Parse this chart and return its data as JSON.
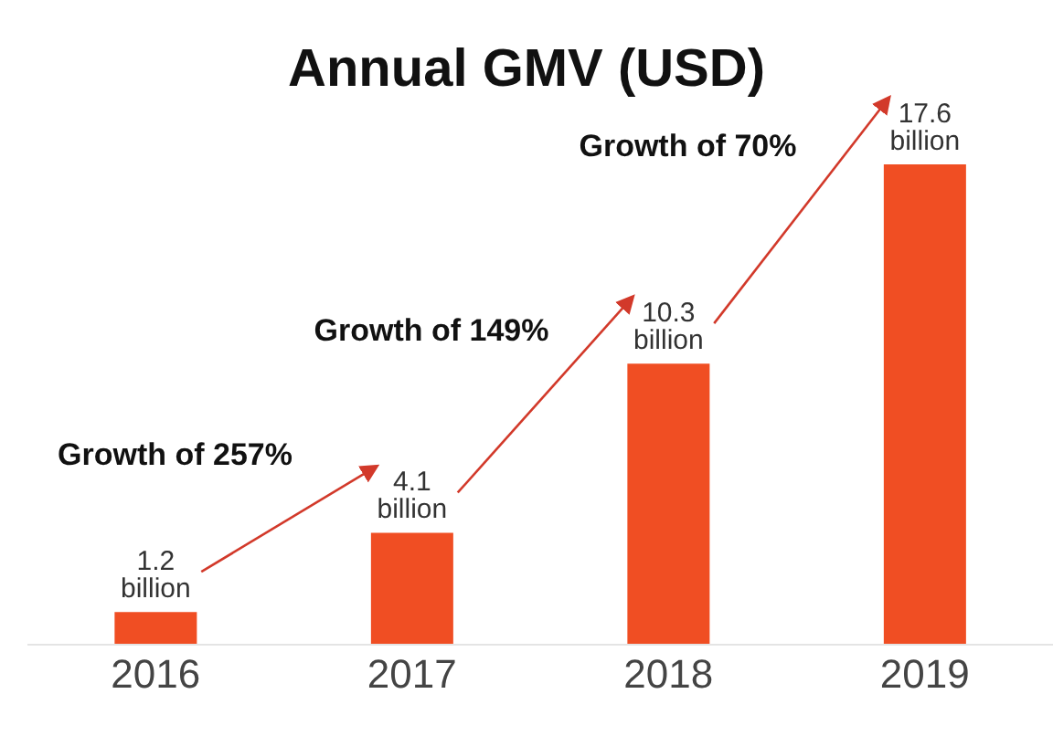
{
  "chart_data": {
    "type": "bar",
    "title": "Annual GMV (USD)",
    "categories": [
      "2016",
      "2017",
      "2018",
      "2019"
    ],
    "values": [
      1.2,
      4.1,
      10.3,
      17.6
    ],
    "value_labels": [
      "1.2 billion",
      "4.1 billion",
      "10.3 billion",
      "17.6 billion"
    ],
    "color": "#f04e23",
    "annotations": [
      "Growth of 257%",
      "Growth of 149%",
      "Growth of 70%"
    ],
    "grid": false,
    "legend": false
  }
}
